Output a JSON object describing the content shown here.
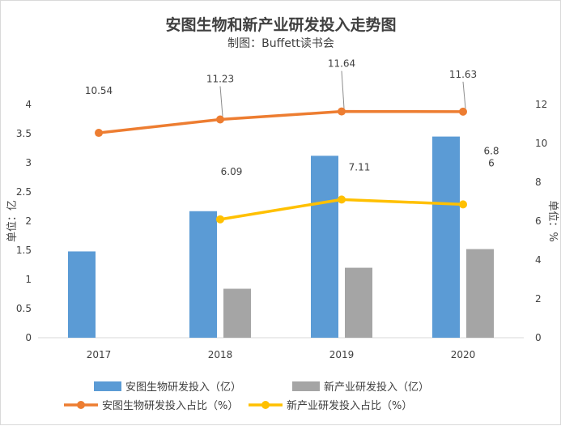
{
  "chart_data": {
    "type": "bar+line",
    "title": "安图生物和新产业研发投入走势图",
    "subtitle": "制图：Buffett读书会",
    "categories": [
      "2017",
      "2018",
      "2019",
      "2020"
    ],
    "y_left": {
      "label": "单位：亿",
      "min": 0,
      "max": 4,
      "step": 0.5,
      "ticks": [
        "0",
        "0.5",
        "1",
        "1.5",
        "2",
        "2.5",
        "3",
        "3.5",
        "4"
      ]
    },
    "y_right": {
      "label": "单位：%",
      "min": 0,
      "max": 12,
      "step": 2,
      "ticks": [
        "0",
        "2",
        "4",
        "6",
        "8",
        "10",
        "12"
      ]
    },
    "series": [
      {
        "name": "安图生物研发投入（亿）",
        "kind": "bar",
        "axis": "left",
        "color": "#5b9bd5",
        "values": [
          1.48,
          2.17,
          3.12,
          3.45
        ]
      },
      {
        "name": "新产业研发投入（亿）",
        "kind": "bar",
        "axis": "left",
        "color": "#a5a5a5",
        "values": [
          null,
          0.84,
          1.2,
          1.52
        ]
      },
      {
        "name": "安图生物研发投入占比（%）",
        "kind": "line",
        "axis": "right",
        "color": "#ed7d31",
        "values": [
          10.54,
          11.23,
          11.64,
          11.63
        ],
        "labels": [
          "10.54",
          "11.23",
          "11.64",
          "11.63"
        ]
      },
      {
        "name": "新产业研发投入占比（%）",
        "kind": "line",
        "axis": "right",
        "color": "#ffc000",
        "values": [
          null,
          6.09,
          7.11,
          6.86
        ],
        "labels": [
          "",
          "6.09",
          "7.11",
          "6.8\n6"
        ]
      }
    ],
    "grid": false,
    "legend": "bottom"
  }
}
